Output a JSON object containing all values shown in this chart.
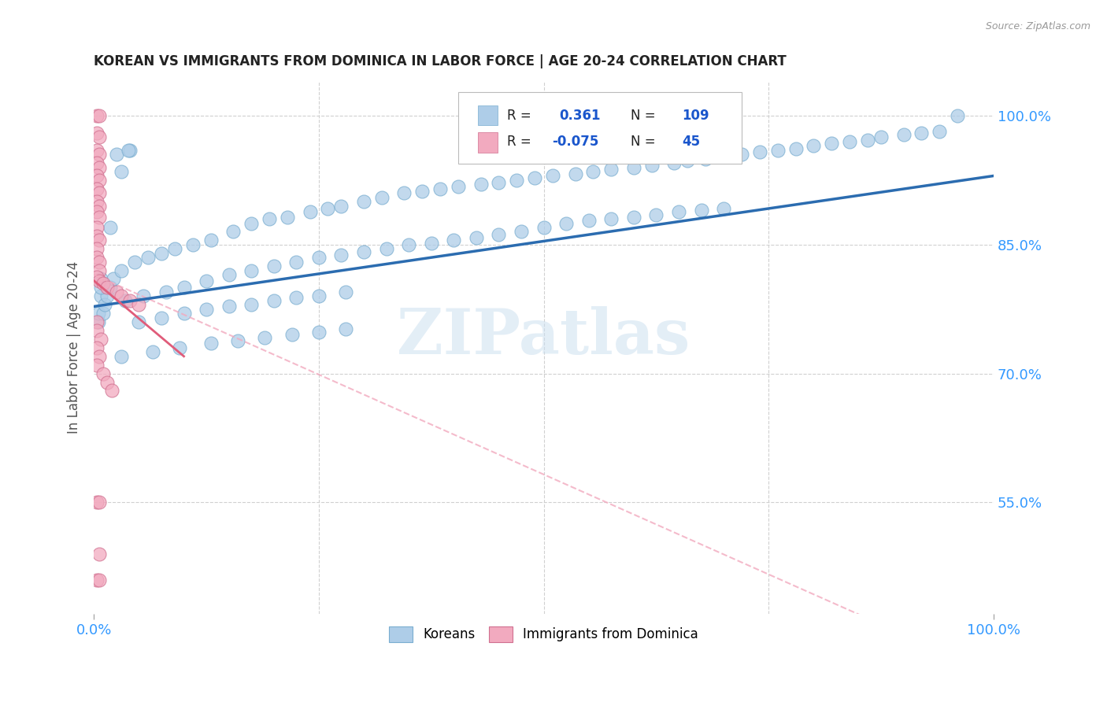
{
  "title": "KOREAN VS IMMIGRANTS FROM DOMINICA IN LABOR FORCE | AGE 20-24 CORRELATION CHART",
  "source": "Source: ZipAtlas.com",
  "ylabel": "In Labor Force | Age 20-24",
  "xlim": [
    0.0,
    1.0
  ],
  "ylim": [
    0.42,
    1.04
  ],
  "y_ticks": [
    0.55,
    0.7,
    0.85,
    1.0
  ],
  "y_tick_labels": [
    "55.0%",
    "70.0%",
    "85.0%",
    "100.0%"
  ],
  "x_tick_labels": [
    "0.0%",
    "100.0%"
  ],
  "r_korean": 0.361,
  "n_korean": 109,
  "r_dominica": -0.075,
  "n_dominica": 45,
  "watermark": "ZIPatlas",
  "korean_color": "#aecde8",
  "dominica_color": "#f2aabf",
  "korean_line_color": "#2b6cb0",
  "dominica_line_color": "#e05c7a",
  "dominica_dash_color": "#f2aabf",
  "grid_color": "#d0d0d0",
  "title_color": "#222222",
  "legend_r_color": "#1a56cc",
  "blue_tick_color": "#3399ff",
  "korean_x": [
    0.008,
    0.008,
    0.018,
    0.03,
    0.04,
    0.025,
    0.038,
    0.005,
    0.005,
    0.01,
    0.012,
    0.015,
    0.008,
    0.018,
    0.022,
    0.03,
    0.045,
    0.06,
    0.075,
    0.09,
    0.11,
    0.13,
    0.155,
    0.175,
    0.195,
    0.215,
    0.24,
    0.26,
    0.275,
    0.3,
    0.32,
    0.345,
    0.365,
    0.385,
    0.405,
    0.43,
    0.45,
    0.47,
    0.49,
    0.51,
    0.535,
    0.555,
    0.575,
    0.6,
    0.62,
    0.645,
    0.66,
    0.68,
    0.695,
    0.72,
    0.74,
    0.76,
    0.78,
    0.8,
    0.82,
    0.84,
    0.86,
    0.875,
    0.9,
    0.92,
    0.94,
    0.96,
    0.035,
    0.055,
    0.08,
    0.1,
    0.125,
    0.15,
    0.175,
    0.2,
    0.225,
    0.25,
    0.275,
    0.3,
    0.325,
    0.35,
    0.375,
    0.4,
    0.425,
    0.45,
    0.475,
    0.5,
    0.525,
    0.55,
    0.575,
    0.6,
    0.625,
    0.65,
    0.675,
    0.7,
    0.05,
    0.075,
    0.1,
    0.125,
    0.15,
    0.175,
    0.2,
    0.225,
    0.25,
    0.28,
    0.03,
    0.065,
    0.095,
    0.13,
    0.16,
    0.19,
    0.22,
    0.25,
    0.28
  ],
  "korean_y": [
    0.79,
    0.81,
    0.87,
    0.935,
    0.96,
    0.955,
    0.96,
    0.76,
    0.77,
    0.77,
    0.78,
    0.79,
    0.8,
    0.8,
    0.81,
    0.82,
    0.83,
    0.835,
    0.84,
    0.845,
    0.85,
    0.855,
    0.865,
    0.875,
    0.88,
    0.882,
    0.888,
    0.892,
    0.895,
    0.9,
    0.905,
    0.91,
    0.912,
    0.915,
    0.918,
    0.92,
    0.922,
    0.925,
    0.928,
    0.93,
    0.932,
    0.935,
    0.938,
    0.94,
    0.942,
    0.945,
    0.948,
    0.95,
    0.952,
    0.955,
    0.958,
    0.96,
    0.962,
    0.965,
    0.968,
    0.97,
    0.972,
    0.975,
    0.978,
    0.98,
    0.982,
    1.0,
    0.785,
    0.79,
    0.795,
    0.8,
    0.808,
    0.815,
    0.82,
    0.825,
    0.83,
    0.835,
    0.838,
    0.842,
    0.845,
    0.85,
    0.852,
    0.855,
    0.858,
    0.862,
    0.865,
    0.87,
    0.875,
    0.878,
    0.88,
    0.882,
    0.885,
    0.888,
    0.89,
    0.892,
    0.76,
    0.765,
    0.77,
    0.775,
    0.778,
    0.78,
    0.785,
    0.788,
    0.79,
    0.795,
    0.72,
    0.725,
    0.73,
    0.735,
    0.738,
    0.742,
    0.745,
    0.748,
    0.752
  ],
  "dominica_x": [
    0.003,
    0.006,
    0.003,
    0.006,
    0.003,
    0.006,
    0.003,
    0.006,
    0.003,
    0.006,
    0.003,
    0.006,
    0.003,
    0.006,
    0.003,
    0.006,
    0.003,
    0.003,
    0.006,
    0.003,
    0.003,
    0.006,
    0.006,
    0.003,
    0.006,
    0.01,
    0.015,
    0.025,
    0.03,
    0.04,
    0.05,
    0.003,
    0.003,
    0.008,
    0.003,
    0.006,
    0.003,
    0.01,
    0.015,
    0.02,
    0.003,
    0.006,
    0.006,
    0.003,
    0.006
  ],
  "dominica_y": [
    1.0,
    1.0,
    0.98,
    0.975,
    0.96,
    0.955,
    0.945,
    0.94,
    0.93,
    0.925,
    0.915,
    0.91,
    0.9,
    0.895,
    0.888,
    0.882,
    0.87,
    0.86,
    0.855,
    0.845,
    0.835,
    0.83,
    0.82,
    0.812,
    0.808,
    0.805,
    0.8,
    0.795,
    0.79,
    0.785,
    0.78,
    0.76,
    0.75,
    0.74,
    0.73,
    0.72,
    0.71,
    0.7,
    0.69,
    0.68,
    0.55,
    0.55,
    0.49,
    0.46,
    0.46
  ]
}
